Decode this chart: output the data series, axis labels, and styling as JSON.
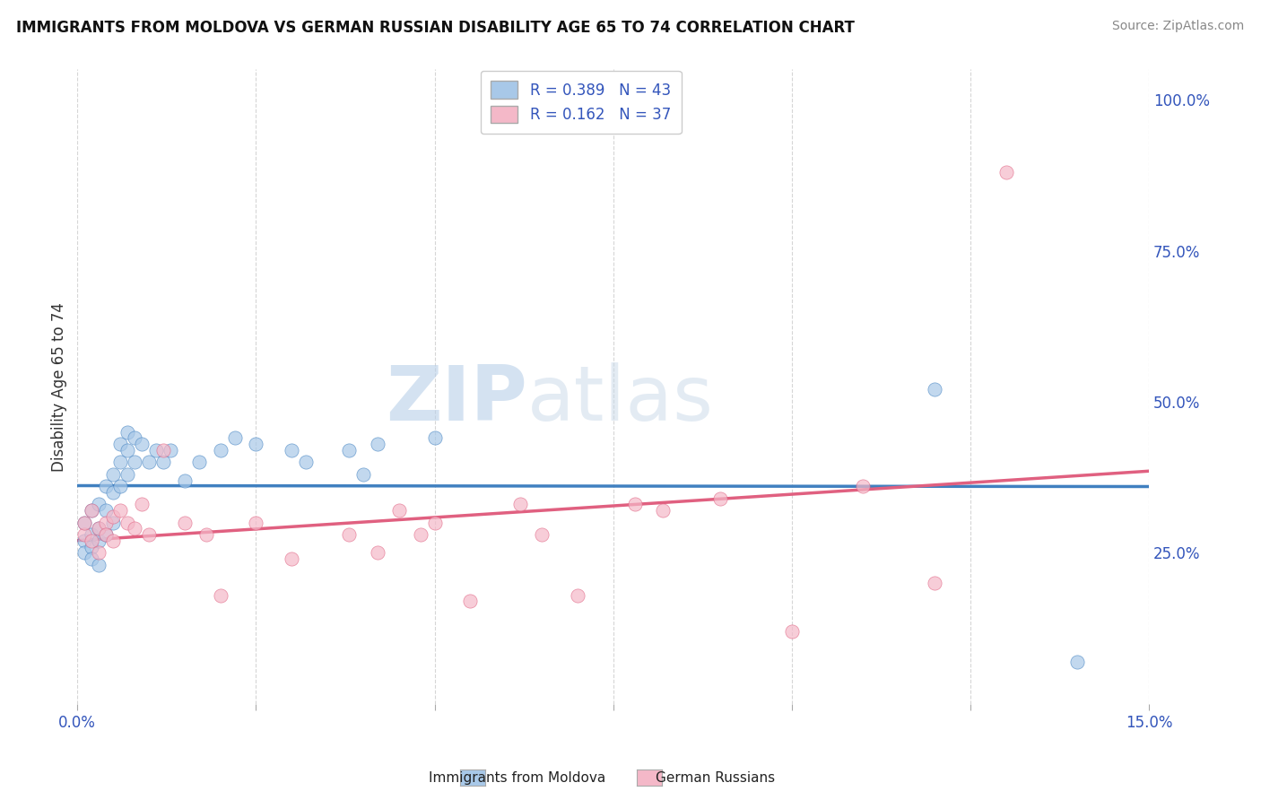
{
  "title": "IMMIGRANTS FROM MOLDOVA VS GERMAN RUSSIAN DISABILITY AGE 65 TO 74 CORRELATION CHART",
  "source": "Source: ZipAtlas.com",
  "ylabel": "Disability Age 65 to 74",
  "xlim": [
    0.0,
    0.15
  ],
  "ylim": [
    0.0,
    1.05
  ],
  "xticks": [
    0.0,
    0.025,
    0.05,
    0.075,
    0.1,
    0.125,
    0.15
  ],
  "xticklabels": [
    "0.0%",
    "",
    "",
    "",
    "",
    "",
    "15.0%"
  ],
  "yticks_right": [
    0.0,
    0.25,
    0.5,
    0.75,
    1.0
  ],
  "yticklabels_right": [
    "",
    "25.0%",
    "50.0%",
    "75.0%",
    "100.0%"
  ],
  "blue_R": 0.389,
  "blue_N": 43,
  "pink_R": 0.162,
  "pink_N": 37,
  "blue_color": "#a8c8e8",
  "pink_color": "#f4b8c8",
  "blue_line_color": "#4080c0",
  "pink_line_color": "#e06080",
  "legend_R_color": "#3355bb",
  "blue_scatter_x": [
    0.001,
    0.001,
    0.001,
    0.002,
    0.002,
    0.002,
    0.002,
    0.003,
    0.003,
    0.003,
    0.003,
    0.004,
    0.004,
    0.004,
    0.005,
    0.005,
    0.005,
    0.006,
    0.006,
    0.006,
    0.007,
    0.007,
    0.007,
    0.008,
    0.008,
    0.009,
    0.01,
    0.011,
    0.012,
    0.013,
    0.015,
    0.017,
    0.02,
    0.022,
    0.025,
    0.03,
    0.032,
    0.038,
    0.04,
    0.042,
    0.05,
    0.12,
    0.14
  ],
  "blue_scatter_y": [
    0.27,
    0.3,
    0.25,
    0.32,
    0.28,
    0.26,
    0.24,
    0.33,
    0.29,
    0.27,
    0.23,
    0.36,
    0.32,
    0.28,
    0.38,
    0.35,
    0.3,
    0.43,
    0.4,
    0.36,
    0.45,
    0.42,
    0.38,
    0.44,
    0.4,
    0.43,
    0.4,
    0.42,
    0.4,
    0.42,
    0.37,
    0.4,
    0.42,
    0.44,
    0.43,
    0.42,
    0.4,
    0.42,
    0.38,
    0.43,
    0.44,
    0.52,
    0.07
  ],
  "pink_scatter_x": [
    0.001,
    0.001,
    0.002,
    0.002,
    0.003,
    0.003,
    0.004,
    0.004,
    0.005,
    0.005,
    0.006,
    0.007,
    0.008,
    0.009,
    0.01,
    0.012,
    0.015,
    0.018,
    0.02,
    0.025,
    0.03,
    0.038,
    0.042,
    0.045,
    0.048,
    0.05,
    0.055,
    0.062,
    0.065,
    0.07,
    0.078,
    0.082,
    0.09,
    0.1,
    0.11,
    0.12,
    0.13
  ],
  "pink_scatter_y": [
    0.28,
    0.3,
    0.27,
    0.32,
    0.29,
    0.25,
    0.3,
    0.28,
    0.31,
    0.27,
    0.32,
    0.3,
    0.29,
    0.33,
    0.28,
    0.42,
    0.3,
    0.28,
    0.18,
    0.3,
    0.24,
    0.28,
    0.25,
    0.32,
    0.28,
    0.3,
    0.17,
    0.33,
    0.28,
    0.18,
    0.33,
    0.32,
    0.34,
    0.12,
    0.36,
    0.2,
    0.88
  ],
  "background_color": "#ffffff",
  "grid_color": "#cccccc",
  "watermark_zip": "ZIP",
  "watermark_atlas": "atlas",
  "watermark_color": "#d8e4f0"
}
